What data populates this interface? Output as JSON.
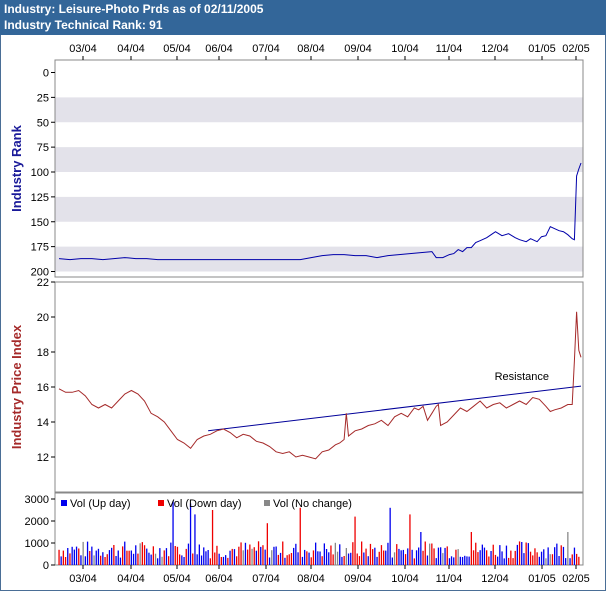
{
  "header": {
    "title": "Industry: Leisure-Photo Prds as of 02/11/2005",
    "subtitle": "Industry Technical Rank: 91"
  },
  "colors": {
    "header_bg": "#336699",
    "band": "#e3e2ea",
    "rank_line": "#0000aa",
    "rank_axis_label": "#1a1a99",
    "price_line": "#a52a2a",
    "price_axis_label": "#a52a2a",
    "trend_line": "#000099",
    "vol_up": "#0000ee",
    "vol_down": "#ee0000",
    "vol_nochange": "#888888"
  },
  "chart_data": [
    {
      "type": "line",
      "name": "rank",
      "ylabel": "Industry Rank",
      "ylim": [
        200,
        0
      ],
      "yticks": [
        0,
        25,
        50,
        75,
        100,
        125,
        150,
        175,
        200
      ],
      "x_month_ticks": [
        "03/04",
        "04/04",
        "05/04",
        "06/04",
        "07/04",
        "08/04",
        "09/04",
        "10/04",
        "11/04",
        "12/04",
        "01/05",
        "02/05"
      ],
      "x_range_trading_days": [
        0,
        238
      ],
      "grid": "alternating horizontal bands",
      "points": [
        [
          0,
          187
        ],
        [
          5,
          188
        ],
        [
          10,
          187
        ],
        [
          15,
          187
        ],
        [
          20,
          188
        ],
        [
          25,
          187
        ],
        [
          30,
          186
        ],
        [
          35,
          187
        ],
        [
          40,
          187
        ],
        [
          45,
          188
        ],
        [
          50,
          188
        ],
        [
          60,
          188
        ],
        [
          70,
          188
        ],
        [
          80,
          188
        ],
        [
          90,
          188
        ],
        [
          100,
          188
        ],
        [
          110,
          188
        ],
        [
          115,
          186
        ],
        [
          120,
          184
        ],
        [
          125,
          183
        ],
        [
          130,
          183
        ],
        [
          135,
          184
        ],
        [
          140,
          184
        ],
        [
          145,
          186
        ],
        [
          150,
          184
        ],
        [
          155,
          183
        ],
        [
          160,
          182
        ],
        [
          165,
          181
        ],
        [
          170,
          180
        ],
        [
          172,
          186
        ],
        [
          175,
          186
        ],
        [
          178,
          183
        ],
        [
          180,
          182
        ],
        [
          182,
          178
        ],
        [
          184,
          180
        ],
        [
          186,
          176
        ],
        [
          188,
          176
        ],
        [
          190,
          171
        ],
        [
          192,
          169
        ],
        [
          195,
          166
        ],
        [
          197,
          163
        ],
        [
          199,
          160
        ],
        [
          202,
          164
        ],
        [
          205,
          162
        ],
        [
          208,
          166
        ],
        [
          210,
          168
        ],
        [
          213,
          170
        ],
        [
          215,
          167
        ],
        [
          218,
          170
        ],
        [
          220,
          165
        ],
        [
          222,
          164
        ],
        [
          224,
          155
        ],
        [
          226,
          157
        ],
        [
          228,
          159
        ],
        [
          230,
          160
        ],
        [
          232,
          163
        ],
        [
          234,
          167
        ],
        [
          235,
          168
        ],
        [
          236,
          104
        ],
        [
          237,
          97
        ],
        [
          238,
          91
        ]
      ]
    },
    {
      "type": "line",
      "name": "price",
      "ylabel": "Industry Price Index",
      "ylim": [
        10,
        22
      ],
      "yticks": [
        12,
        14,
        16,
        18,
        20,
        22
      ],
      "x_month_ticks": [
        "03/04",
        "04/04",
        "05/04",
        "06/04",
        "07/04",
        "08/04",
        "09/04",
        "10/04",
        "11/04",
        "12/04",
        "01/05",
        "02/05"
      ],
      "x_range_trading_days": [
        0,
        238
      ],
      "points": [
        [
          0,
          15.9
        ],
        [
          3,
          15.7
        ],
        [
          6,
          15.7
        ],
        [
          9,
          15.8
        ],
        [
          12,
          15.5
        ],
        [
          15,
          15.0
        ],
        [
          18,
          14.8
        ],
        [
          21,
          15.0
        ],
        [
          24,
          14.8
        ],
        [
          27,
          15.2
        ],
        [
          30,
          15.6
        ],
        [
          33,
          15.8
        ],
        [
          36,
          15.6
        ],
        [
          39,
          15.2
        ],
        [
          42,
          14.5
        ],
        [
          45,
          14.3
        ],
        [
          48,
          14.0
        ],
        [
          51,
          13.5
        ],
        [
          54,
          13.0
        ],
        [
          57,
          12.8
        ],
        [
          60,
          12.5
        ],
        [
          63,
          13.0
        ],
        [
          66,
          13.2
        ],
        [
          69,
          13.3
        ],
        [
          72,
          13.5
        ],
        [
          75,
          13.6
        ],
        [
          78,
          13.4
        ],
        [
          81,
          13.1
        ],
        [
          84,
          13.3
        ],
        [
          87,
          13.2
        ],
        [
          90,
          12.9
        ],
        [
          93,
          12.8
        ],
        [
          96,
          12.6
        ],
        [
          99,
          12.3
        ],
        [
          102,
          12.2
        ],
        [
          105,
          12.3
        ],
        [
          108,
          12.0
        ],
        [
          111,
          12.1
        ],
        [
          114,
          12.0
        ],
        [
          117,
          11.9
        ],
        [
          120,
          12.3
        ],
        [
          123,
          12.4
        ],
        [
          126,
          12.7
        ],
        [
          128,
          12.8
        ],
        [
          130,
          13.0
        ],
        [
          131,
          14.5
        ],
        [
          132,
          13.2
        ],
        [
          135,
          13.5
        ],
        [
          138,
          13.6
        ],
        [
          141,
          13.8
        ],
        [
          144,
          13.9
        ],
        [
          147,
          14.1
        ],
        [
          150,
          13.8
        ],
        [
          153,
          14.3
        ],
        [
          156,
          14.5
        ],
        [
          159,
          14.3
        ],
        [
          162,
          14.8
        ],
        [
          164,
          14.7
        ],
        [
          166,
          14.9
        ],
        [
          168,
          14.1
        ],
        [
          170,
          14.5
        ],
        [
          172,
          14.9
        ],
        [
          173,
          15.0
        ],
        [
          174,
          13.8
        ],
        [
          177,
          14.0
        ],
        [
          180,
          14.4
        ],
        [
          183,
          14.8
        ],
        [
          186,
          14.6
        ],
        [
          189,
          14.9
        ],
        [
          192,
          15.2
        ],
        [
          195,
          14.8
        ],
        [
          198,
          15.0
        ],
        [
          201,
          15.1
        ],
        [
          204,
          14.8
        ],
        [
          207,
          15.0
        ],
        [
          210,
          15.2
        ],
        [
          213,
          15.0
        ],
        [
          216,
          15.4
        ],
        [
          219,
          15.3
        ],
        [
          222,
          14.9
        ],
        [
          224,
          14.6
        ],
        [
          226,
          14.7
        ],
        [
          229,
          14.8
        ],
        [
          232,
          15.0
        ],
        [
          234,
          15.0
        ],
        [
          235,
          17.5
        ],
        [
          236,
          20.3
        ],
        [
          237,
          18.1
        ],
        [
          238,
          17.7
        ]
      ],
      "annotations": [
        {
          "text": "Resistance",
          "x_day": 205,
          "y_value": 16.05
        },
        {
          "type": "trendline",
          "from": [
            68,
            13.5
          ],
          "to": [
            238,
            16.05
          ]
        }
      ]
    },
    {
      "type": "bar",
      "name": "volume",
      "ylim": [
        0,
        3000
      ],
      "yticks": [
        0,
        1000,
        2000,
        3000
      ],
      "x_month_ticks": [
        "03/04",
        "04/04",
        "05/04",
        "06/04",
        "07/04",
        "08/04",
        "09/04",
        "10/04",
        "11/04",
        "12/04",
        "01/05",
        "02/05"
      ],
      "series": [
        {
          "name": "Vol (Up day)"
        },
        {
          "name": "Vol (Down day)"
        },
        {
          "name": "Vol (No change)"
        }
      ],
      "bar_count": 238
    }
  ]
}
